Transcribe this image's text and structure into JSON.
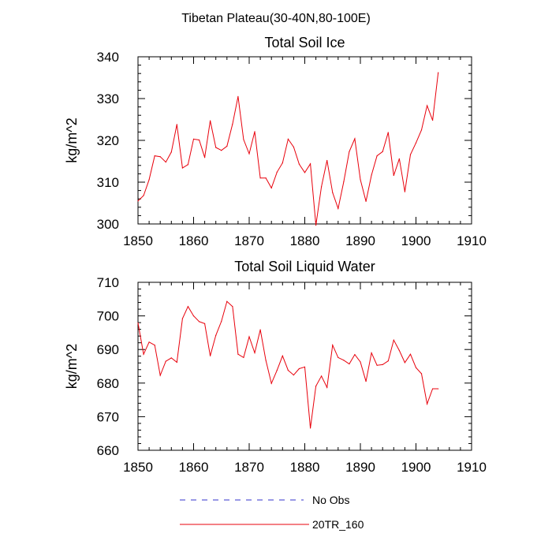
{
  "figure": {
    "suptitle": "Tibetan Plateau(30-40N,80-100E)"
  },
  "legend": {
    "entries": [
      {
        "label": "No Obs",
        "color": "#3333cc",
        "style": "dashed"
      },
      {
        "label": "20TR_160",
        "color": "#e8000b",
        "style": "solid"
      }
    ]
  },
  "chart_data": [
    {
      "type": "line",
      "title": "Total Soil Ice",
      "xlabel": "",
      "ylabel": "kg/m^2",
      "xlim": [
        1850,
        1910
      ],
      "ylim": [
        300,
        340
      ],
      "xticks": [
        1850,
        1860,
        1870,
        1880,
        1890,
        1900,
        1910
      ],
      "yticks": [
        300,
        310,
        320,
        330,
        340
      ],
      "series": [
        {
          "name": "20TR_160",
          "color": "#e8000b",
          "x": [
            1850,
            1851,
            1852,
            1853,
            1854,
            1855,
            1856,
            1857,
            1858,
            1859,
            1860,
            1861,
            1862,
            1863,
            1864,
            1865,
            1866,
            1867,
            1868,
            1869,
            1870,
            1871,
            1872,
            1873,
            1874,
            1875,
            1876,
            1877,
            1878,
            1879,
            1880,
            1881,
            1882,
            1883,
            1884,
            1885,
            1886,
            1887,
            1888,
            1889,
            1890,
            1891,
            1892,
            1893,
            1894,
            1895,
            1896,
            1897,
            1898,
            1899,
            1900,
            1901,
            1902,
            1903,
            1904
          ],
          "y": [
            305.5,
            306.8,
            310.6,
            316.3,
            316.1,
            314.8,
            317.2,
            323.8,
            313.4,
            314.2,
            320.3,
            320.1,
            315.9,
            324.7,
            318.3,
            317.6,
            318.6,
            323.9,
            330.5,
            320.2,
            316.8,
            322.1,
            311.0,
            311.0,
            308.6,
            312.4,
            314.6,
            320.3,
            318.4,
            314.3,
            312.3,
            314.4,
            299.7,
            308.9,
            315.2,
            307.5,
            303.7,
            310.1,
            317.3,
            320.4,
            310.6,
            305.4,
            311.7,
            316.3,
            317.3,
            321.9,
            311.6,
            315.6,
            307.7,
            316.6,
            319.4,
            322.5,
            328.3,
            324.8,
            336.2
          ]
        }
      ]
    },
    {
      "type": "line",
      "title": "Total Soil Liquid Water",
      "xlabel": "",
      "ylabel": "kg/m^2",
      "xlim": [
        1850,
        1910
      ],
      "ylim": [
        660,
        710
      ],
      "xticks": [
        1850,
        1860,
        1870,
        1880,
        1890,
        1900,
        1910
      ],
      "yticks": [
        660,
        670,
        680,
        690,
        700,
        710
      ],
      "series": [
        {
          "name": "20TR_160",
          "color": "#e8000b",
          "x": [
            1850,
            1851,
            1852,
            1853,
            1854,
            1855,
            1856,
            1857,
            1858,
            1859,
            1860,
            1861,
            1862,
            1863,
            1864,
            1865,
            1866,
            1867,
            1868,
            1869,
            1870,
            1871,
            1872,
            1873,
            1874,
            1875,
            1876,
            1877,
            1878,
            1879,
            1880,
            1881,
            1882,
            1883,
            1884,
            1885,
            1886,
            1887,
            1888,
            1889,
            1890,
            1891,
            1892,
            1893,
            1894,
            1895,
            1896,
            1897,
            1898,
            1899,
            1900,
            1901,
            1902,
            1903,
            1904
          ],
          "y": [
            697.9,
            688.6,
            692.2,
            691.3,
            682.3,
            686.5,
            687.5,
            686.2,
            699.2,
            702.8,
            700.0,
            698.3,
            697.7,
            688.1,
            694.2,
            698.4,
            704.3,
            702.8,
            688.6,
            687.6,
            693.8,
            689.0,
            695.9,
            686.8,
            679.9,
            683.8,
            688.1,
            683.8,
            682.4,
            684.3,
            684.8,
            666.6,
            679.1,
            682.1,
            678.7,
            691.3,
            687.6,
            686.8,
            685.7,
            688.5,
            686.3,
            680.5,
            689.0,
            685.3,
            685.5,
            686.6,
            692.8,
            689.7,
            686.1,
            688.6,
            684.6,
            682.8,
            673.8,
            678.3,
            678.3
          ]
        }
      ]
    }
  ]
}
